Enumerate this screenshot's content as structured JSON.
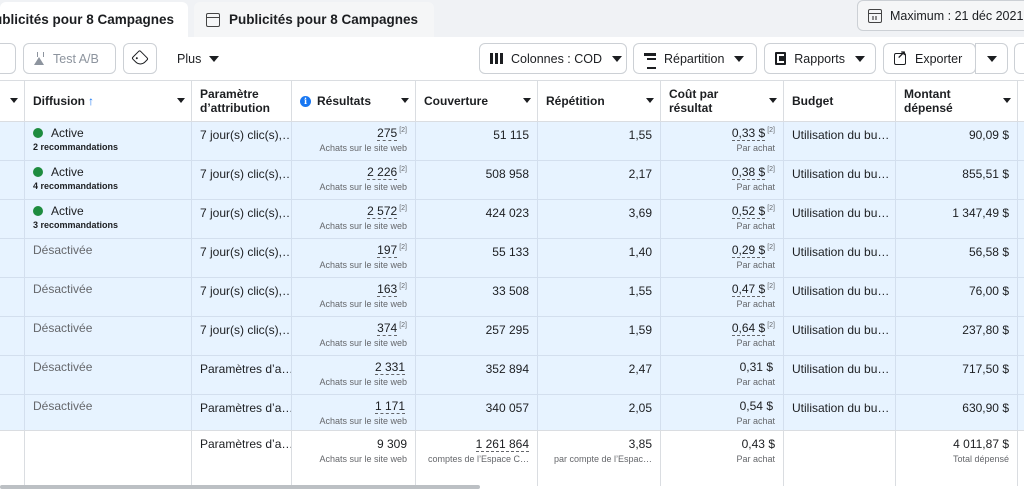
{
  "tabs": {
    "active": "ublicités pour 8 Campagnes",
    "second": "Publicités pour 8 Campagnes"
  },
  "date_range": "Maximum : 21 déc 2021 –",
  "toolbar": {
    "ab_test": "Test A/B",
    "more": "Plus",
    "columns": "Colonnes : COD",
    "breakdown": "Répartition",
    "reports": "Rapports",
    "export": "Exporter"
  },
  "headers": {
    "delivery": "Diffusion",
    "delivery_sort": "↑",
    "attribution": "Paramètre d’attribution",
    "results": "Résultats",
    "reach": "Couverture",
    "frequency": "Répétition",
    "cost": "Coût par résultat",
    "budget": "Budget",
    "spent": "Montant dépensé"
  },
  "rows": [
    {
      "status": "Active",
      "active": true,
      "recs": "2 recommandations",
      "attribution": "7 jour(s) clic(s),…",
      "results": "275",
      "results_note": "[2]",
      "results_sub": "Achats sur le site web",
      "reach": "51 115",
      "frequency": "1,55",
      "cost": "0,33 $",
      "cost_note": "[2]",
      "cost_sub": "Par achat",
      "budget": "Utilisation du bu…",
      "spent": "90,09 $"
    },
    {
      "status": "Active",
      "active": true,
      "recs": "4 recommandations",
      "attribution": "7 jour(s) clic(s),…",
      "results": "2 226",
      "results_note": "[2]",
      "results_sub": "Achats sur le site web",
      "reach": "508 958",
      "frequency": "2,17",
      "cost": "0,38 $",
      "cost_note": "[2]",
      "cost_sub": "Par achat",
      "budget": "Utilisation du bu…",
      "spent": "855,51 $"
    },
    {
      "status": "Active",
      "active": true,
      "recs": "3 recommandations",
      "attribution": "7 jour(s) clic(s),…",
      "results": "2 572",
      "results_note": "[2]",
      "results_sub": "Achats sur le site web",
      "reach": "424 023",
      "frequency": "3,69",
      "cost": "0,52 $",
      "cost_note": "[2]",
      "cost_sub": "Par achat",
      "budget": "Utilisation du bu…",
      "spent": "1 347,49 $"
    },
    {
      "status": "Désactivée",
      "active": false,
      "recs": "",
      "attribution": "7 jour(s) clic(s),…",
      "results": "197",
      "results_note": "[2]",
      "results_sub": "Achats sur le site web",
      "reach": "55 133",
      "frequency": "1,40",
      "cost": "0,29 $",
      "cost_note": "[2]",
      "cost_sub": "Par achat",
      "budget": "Utilisation du bu…",
      "spent": "56,58 $"
    },
    {
      "status": "Désactivée",
      "active": false,
      "recs": "",
      "attribution": "7 jour(s) clic(s),…",
      "results": "163",
      "results_note": "[2]",
      "results_sub": "Achats sur le site web",
      "reach": "33 508",
      "frequency": "1,55",
      "cost": "0,47 $",
      "cost_note": "[2]",
      "cost_sub": "Par achat",
      "budget": "Utilisation du bu…",
      "spent": "76,00 $"
    },
    {
      "status": "Désactivée",
      "active": false,
      "recs": "",
      "attribution": "7 jour(s) clic(s),…",
      "results": "374",
      "results_note": "[2]",
      "results_sub": "Achats sur le site web",
      "reach": "257 295",
      "frequency": "1,59",
      "cost": "0,64 $",
      "cost_note": "[2]",
      "cost_sub": "Par achat",
      "budget": "Utilisation du bu…",
      "spent": "237,80 $"
    },
    {
      "status": "Désactivée",
      "active": false,
      "recs": "",
      "attribution": "Paramètres d’a…",
      "results": "2 331",
      "results_note": "",
      "results_sub": "Achats sur le site web",
      "reach": "352 894",
      "frequency": "2,47",
      "cost": "0,31 $",
      "cost_note": "",
      "cost_sub": "Par achat",
      "budget": "Utilisation du bu…",
      "spent": "717,50 $"
    },
    {
      "status": "Désactivée",
      "active": false,
      "recs": "",
      "attribution": "Paramètres d’a…",
      "results": "1 171",
      "results_note": "",
      "results_sub": "Achats sur le site web",
      "reach": "340 057",
      "frequency": "2,05",
      "cost": "0,54 $",
      "cost_note": "",
      "cost_sub": "Par achat",
      "budget": "Utilisation du bu…",
      "spent": "630,90 $"
    }
  ],
  "totals": {
    "attribution": "Paramètres d’a…",
    "results": "9 309",
    "results_sub": "Achats sur le site web",
    "reach": "1 261 864",
    "reach_sub": "comptes de l’Espace C…",
    "frequency": "3,85",
    "frequency_sub": "par compte de l’Espac…",
    "cost": "0,43 $",
    "cost_sub": "Par achat",
    "spent": "4 011,87 $",
    "spent_sub": "Total dépensé"
  },
  "colors": {
    "row_bg": "#e7f3ff",
    "active_dot": "#1e8c3f",
    "accent": "#1877f2"
  }
}
